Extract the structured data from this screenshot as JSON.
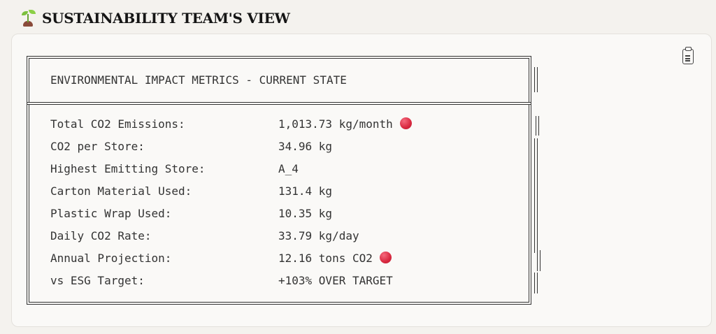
{
  "header": {
    "icon": "seedling-icon",
    "title": "SUSTAINABILITY TEAM'S VIEW"
  },
  "card": {
    "copy_icon": "clipboard-icon",
    "box_title": "ENVIRONMENTAL IMPACT METRICS - CURRENT STATE",
    "alert_color": "#d8283f",
    "metrics": [
      {
        "label": "Total CO2 Emissions:",
        "value": "1,013.73 kg/month",
        "alert": true
      },
      {
        "label": "CO2 per Store:",
        "value": "34.96 kg",
        "alert": false
      },
      {
        "label": "Highest Emitting Store:",
        "value": "A_4",
        "alert": false
      },
      {
        "label": "Carton Material Used:",
        "value": "131.4 kg",
        "alert": false
      },
      {
        "label": "Plastic Wrap Used:",
        "value": "10.35 kg",
        "alert": false
      },
      {
        "label": "Daily CO2 Rate:",
        "value": "33.79 kg/day",
        "alert": false
      },
      {
        "label": "Annual Projection:",
        "value": "12.16 tons CO2",
        "alert": true
      },
      {
        "label": "vs ESG Target:",
        "value": "+103% OVER TARGET",
        "alert": false
      }
    ]
  }
}
